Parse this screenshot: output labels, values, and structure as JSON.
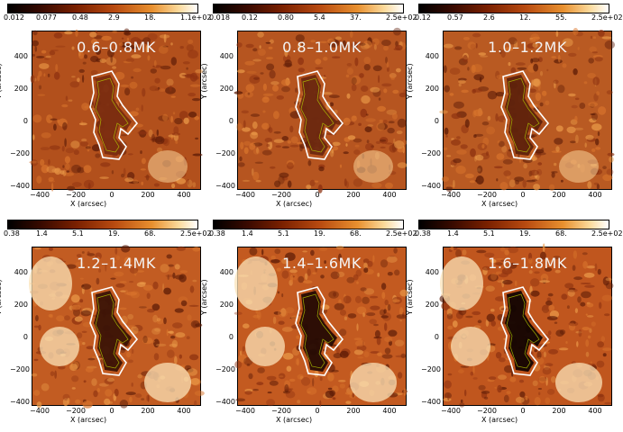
{
  "axes": {
    "xlabel": "X (arcsec)",
    "ylabel": "Y (arcsec)"
  },
  "panels": [
    {
      "band": "0.6–0.8MK",
      "cbar": [
        "0.012",
        "0.077",
        "0.48",
        "2.9",
        "18.",
        "1.1e+02"
      ],
      "contrast": 0.85,
      "core": "#7a2c10",
      "bg": "#b2501c"
    },
    {
      "band": "0.8–1.0MK",
      "cbar": [
        "0.018",
        "0.12",
        "0.80",
        "5.4",
        "37.",
        "2.5e+02"
      ],
      "contrast": 0.9,
      "core": "#6c2810",
      "bg": "#b65520"
    },
    {
      "band": "1.0–1.2MK",
      "cbar": [
        "0.12",
        "0.57",
        "2.6",
        "12.",
        "55.",
        "2.5e+02"
      ],
      "contrast": 0.95,
      "core": "#5e220c",
      "bg": "#b95a22"
    },
    {
      "band": "1.2–1.4MK",
      "cbar": [
        "0.38",
        "1.4",
        "5.1",
        "19.",
        "68.",
        "2.5e+02"
      ],
      "contrast": 1.0,
      "core": "#3b1306",
      "bg": "#c25c22"
    },
    {
      "band": "1.4–1.6MK",
      "cbar": [
        "0.38",
        "1.4",
        "5.1",
        "19.",
        "68.",
        "2.5e+02"
      ],
      "contrast": 1.05,
      "core": "#250b04",
      "bg": "#c35a20"
    },
    {
      "band": "1.6–1.8MK",
      "cbar": [
        "0.38",
        "1.4",
        "5.1",
        "19.",
        "68.",
        "2.5e+02"
      ],
      "contrast": 1.1,
      "core": "#120402",
      "bg": "#c0561e"
    }
  ],
  "xticks": [
    "−400",
    "−200",
    "0",
    "200",
    "400"
  ],
  "yticks": [
    "400",
    "200",
    "0",
    "−200",
    "−400"
  ]
}
